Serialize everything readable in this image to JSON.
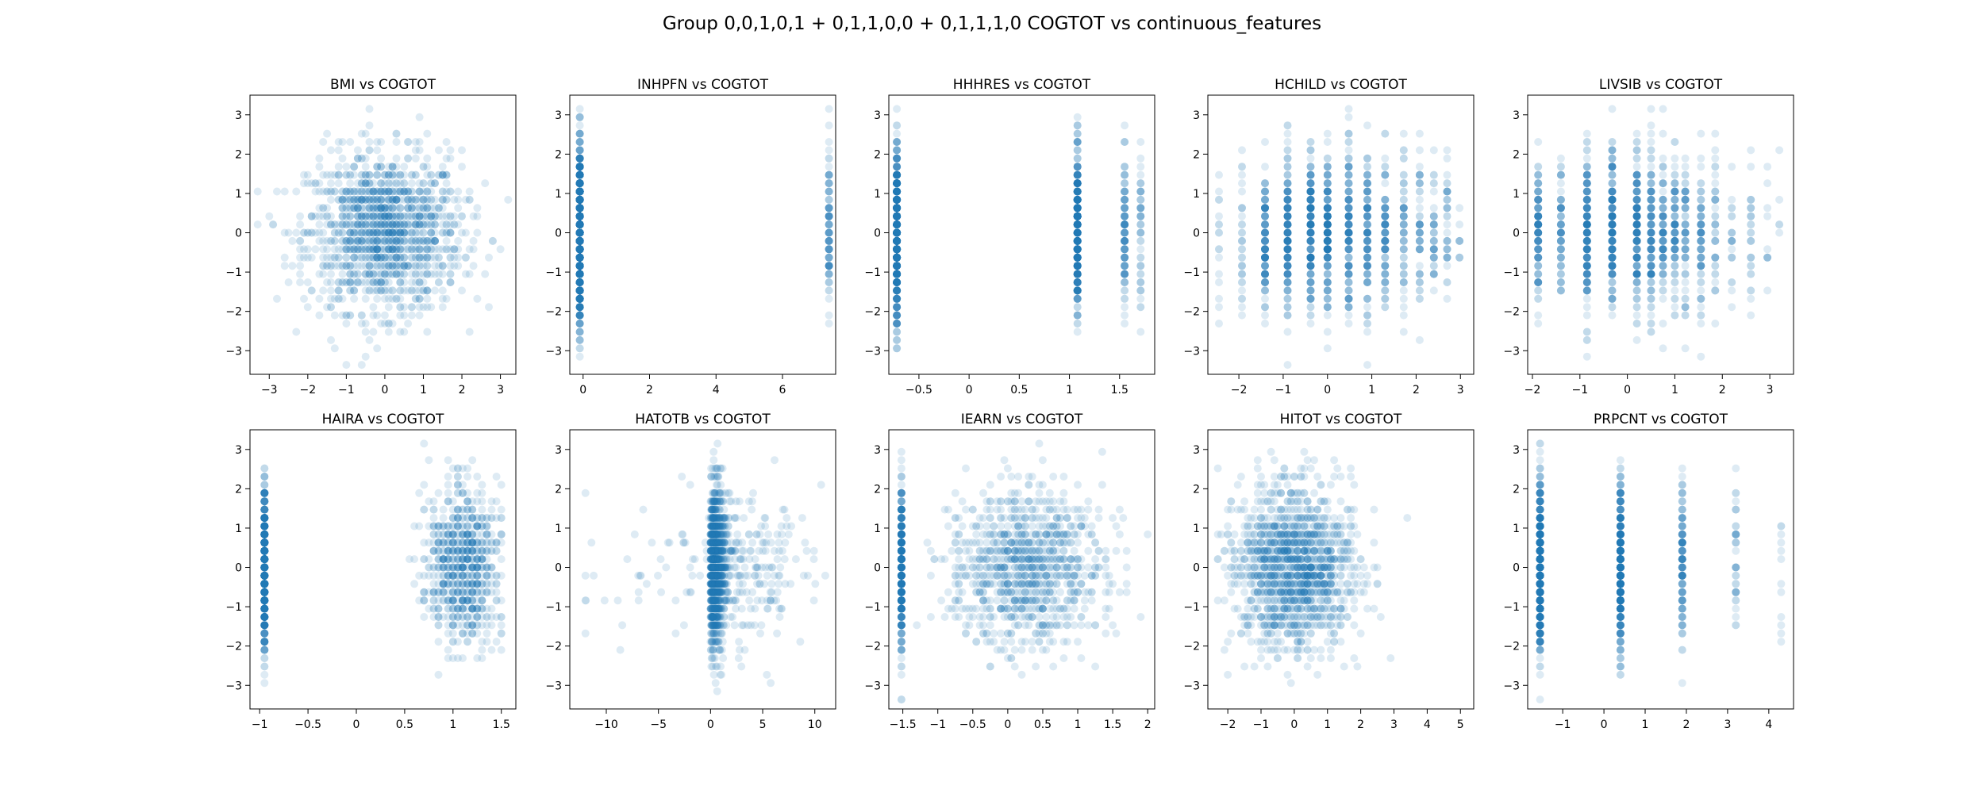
{
  "suptitle": "Group 0,0,1,0,1 + 0,1,1,0,0 + 0,1,1,1,0 COGTOT vs continuous_features",
  "point_color": "#1f77b4",
  "point_alpha": 0.15,
  "chart_data": [
    {
      "type": "scatter",
      "title": "BMI vs COGTOT",
      "xlim": [
        -3.5,
        3.4
      ],
      "ylim": [
        -3.6,
        3.5
      ],
      "xticks": [
        -3,
        -2,
        -1,
        0,
        1,
        2,
        3
      ],
      "yticks": [
        -3,
        -2,
        -1,
        0,
        1,
        2,
        3
      ],
      "x_kind": "normal",
      "x_center": 0,
      "x_spread": 1
    },
    {
      "type": "scatter",
      "title": "INHPFN vs COGTOT",
      "xlim": [
        -0.4,
        7.6
      ],
      "ylim": [
        -3.6,
        3.5
      ],
      "xticks": [
        0,
        2,
        4,
        6
      ],
      "yticks": [
        -3,
        -2,
        -1,
        0,
        1,
        2,
        3
      ],
      "x_kind": "discrete",
      "x_levels": [
        -0.1,
        7.4
      ],
      "x_level_weights": [
        0.93,
        0.07
      ]
    },
    {
      "type": "scatter",
      "title": "HHHRES vs COGTOT",
      "xlim": [
        -0.8,
        1.85
      ],
      "ylim": [
        -3.6,
        3.5
      ],
      "xticks": [
        -0.5,
        0.0,
        0.5,
        1.0,
        1.5
      ],
      "yticks": [
        -3,
        -2,
        -1,
        0,
        1,
        2,
        3
      ],
      "x_kind": "discrete",
      "x_levels": [
        -0.72,
        1.08,
        1.55,
        1.71
      ],
      "x_level_weights": [
        0.55,
        0.32,
        0.09,
        0.04
      ]
    },
    {
      "type": "scatter",
      "title": "HCHILD vs COGTOT",
      "xlim": [
        -2.7,
        3.3
      ],
      "ylim": [
        -3.6,
        3.5
      ],
      "xticks": [
        -2,
        -1,
        0,
        1,
        2,
        3
      ],
      "yticks": [
        -3,
        -2,
        -1,
        0,
        1,
        2,
        3
      ],
      "x_kind": "discrete",
      "x_levels": [
        -2.45,
        -1.93,
        -1.41,
        -0.9,
        -0.38,
        0.0,
        0.48,
        0.9,
        1.3,
        1.72,
        2.08,
        2.4,
        2.7,
        2.98
      ],
      "x_level_weights": [
        0.02,
        0.03,
        0.08,
        0.12,
        0.15,
        0.14,
        0.12,
        0.1,
        0.08,
        0.06,
        0.04,
        0.03,
        0.02,
        0.01
      ]
    },
    {
      "type": "scatter",
      "title": "LIVSIB vs COGTOT",
      "xlim": [
        -2.1,
        3.5
      ],
      "ylim": [
        -3.6,
        3.5
      ],
      "xticks": [
        -2,
        -1,
        0,
        1,
        2,
        3
      ],
      "yticks": [
        -3,
        -2,
        -1,
        0,
        1,
        2,
        3
      ],
      "x_kind": "discrete",
      "x_levels": [
        -1.88,
        -1.4,
        -0.85,
        -0.32,
        0.2,
        0.5,
        0.75,
        1.0,
        1.22,
        1.55,
        1.85,
        2.2,
        2.6,
        2.95,
        3.2
      ],
      "x_level_weights": [
        0.08,
        0.06,
        0.14,
        0.14,
        0.12,
        0.1,
        0.09,
        0.08,
        0.06,
        0.05,
        0.03,
        0.02,
        0.015,
        0.01,
        0.005
      ]
    },
    {
      "type": "scatter",
      "title": "HAIRA vs COGTOT",
      "xlim": [
        -1.1,
        1.65
      ],
      "ylim": [
        -3.6,
        3.5
      ],
      "xticks": [
        -1.0,
        -0.5,
        0.0,
        0.5,
        1.0,
        1.5
      ],
      "yticks": [
        -3,
        -2,
        -1,
        0,
        1,
        2,
        3
      ],
      "x_kind": "mixed",
      "x_levels": [
        -0.95
      ],
      "x_level_weight": 0.45,
      "x_center": 1.1,
      "x_spread": 0.18,
      "x_min": 0.0,
      "x_max": 1.5
    },
    {
      "type": "scatter",
      "title": "HATOTB vs COGTOT",
      "xlim": [
        -13.5,
        12
      ],
      "ylim": [
        -3.6,
        3.5
      ],
      "xticks": [
        -10,
        -5,
        0,
        5,
        10
      ],
      "yticks": [
        -3,
        -2,
        -1,
        0,
        1,
        2,
        3
      ],
      "x_kind": "skewed",
      "x_center": 0.0,
      "x_spread": 1.6,
      "x_min": -12,
      "x_max": 11
    },
    {
      "type": "scatter",
      "title": "IEARN vs COGTOT",
      "xlim": [
        -1.7,
        2.1
      ],
      "ylim": [
        -3.6,
        3.5
      ],
      "xticks": [
        -1.5,
        -1.0,
        -0.5,
        0.0,
        0.5,
        1.0,
        1.5,
        2.0
      ],
      "yticks": [
        -3,
        -2,
        -1,
        0,
        1,
        2,
        3
      ],
      "x_kind": "mixed",
      "x_levels": [
        -1.52
      ],
      "x_level_weight": 0.3,
      "x_center": 0.25,
      "x_spread": 0.55,
      "x_min": -1.3,
      "x_max": 2.0
    },
    {
      "type": "scatter",
      "title": "HITOT vs COGTOT",
      "xlim": [
        -2.6,
        5.4
      ],
      "ylim": [
        -3.6,
        3.5
      ],
      "xticks": [
        -2,
        -1,
        0,
        1,
        2,
        3,
        4,
        5
      ],
      "yticks": [
        -3,
        -2,
        -1,
        0,
        1,
        2,
        3
      ],
      "x_kind": "normal",
      "x_center": 0.0,
      "x_spread": 0.9,
      "x_min": -2.3,
      "x_max": 5.1
    },
    {
      "type": "scatter",
      "title": "PRPCNT vs COGTOT",
      "xlim": [
        -1.85,
        4.6
      ],
      "ylim": [
        -3.6,
        3.5
      ],
      "xticks": [
        -1,
        0,
        1,
        2,
        3,
        4
      ],
      "yticks": [
        -3,
        -2,
        -1,
        0,
        1,
        2,
        3
      ],
      "x_kind": "discrete",
      "x_levels": [
        -1.55,
        0.4,
        1.9,
        3.2,
        4.3
      ],
      "x_level_weights": [
        0.5,
        0.36,
        0.1,
        0.03,
        0.01
      ]
    }
  ]
}
